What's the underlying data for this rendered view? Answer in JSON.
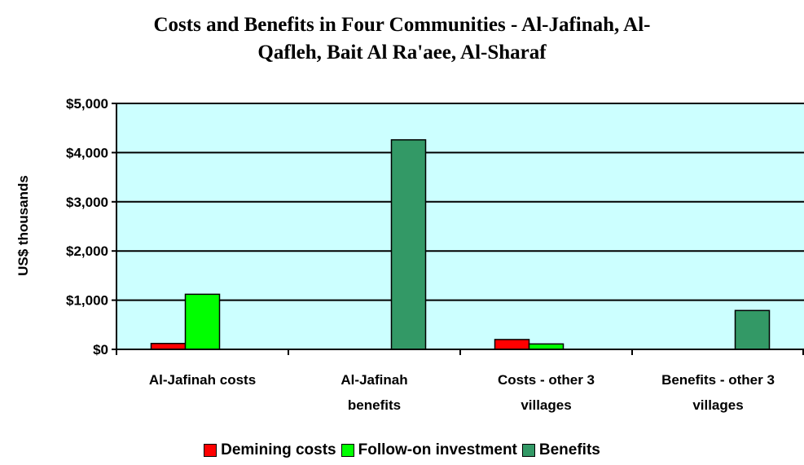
{
  "chart_data": {
    "type": "bar",
    "title_lines": [
      "Costs and Benefits in Four Communities - Al-Jafinah, Al-",
      "Qafleh, Bait Al Ra'aee, Al-Sharaf"
    ],
    "ylabel": "US$ thousands",
    "xlabel": "",
    "ylim": [
      0,
      5000
    ],
    "yticks": [
      "$0",
      "$1,000",
      "$2,000",
      "$3,000",
      "$4,000",
      "$5,000"
    ],
    "ytick_values": [
      0,
      1000,
      2000,
      3000,
      4000,
      5000
    ],
    "categories": [
      [
        "Al-Jafinah costs"
      ],
      [
        "Al-Jafinah",
        "benefits"
      ],
      [
        "Costs - other 3",
        "villages"
      ],
      [
        "Benefits - other 3",
        "villages"
      ]
    ],
    "series": [
      {
        "name": "Demining costs",
        "color": "#ff0000",
        "values": [
          120,
          0,
          200,
          0
        ]
      },
      {
        "name": "Follow-on investment",
        "color": "#00ff00",
        "values": [
          1120,
          0,
          110,
          0
        ]
      },
      {
        "name": "Benefits",
        "color": "#339966",
        "values": [
          0,
          4260,
          0,
          790
        ]
      }
    ],
    "plot_background": "#ccffff",
    "grid": true,
    "legend_position": "bottom"
  }
}
